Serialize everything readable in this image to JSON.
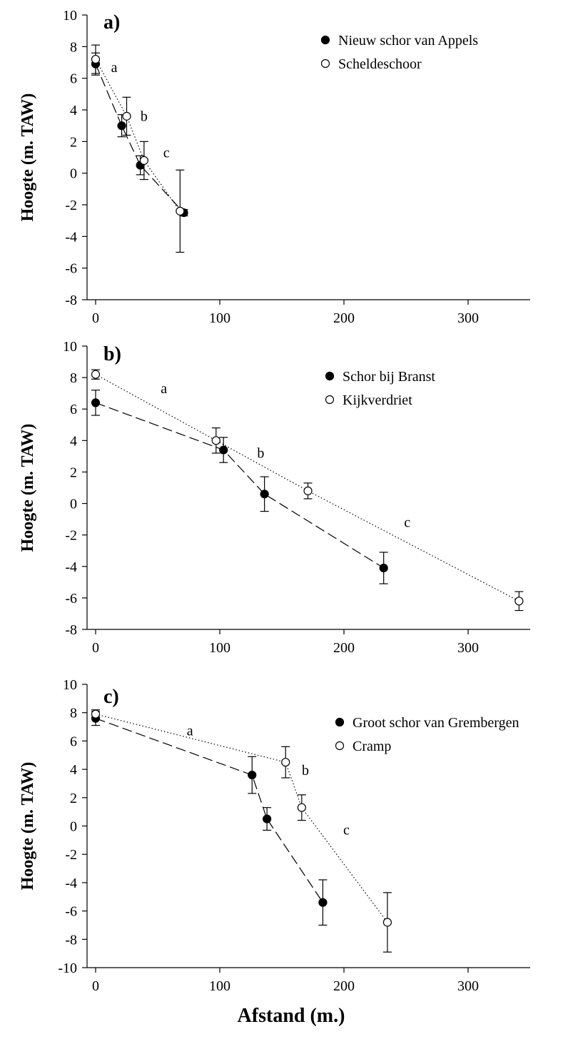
{
  "figure": {
    "xlabel": "Afstand (m.)"
  },
  "chart_data": [
    {
      "type": "scatter",
      "panel_label": "a)",
      "ylabel": "Hoogte (m. TAW)",
      "xlim": [
        0,
        350
      ],
      "ylim": [
        -8,
        10
      ],
      "xticks": [
        0,
        100,
        200,
        300
      ],
      "yticks": [
        -8,
        -6,
        -4,
        -2,
        0,
        2,
        4,
        6,
        8,
        10
      ],
      "legend_position": "top-right",
      "series": [
        {
          "name": "Nieuw schor van Appels",
          "marker": "filled",
          "line": "dashed",
          "x": [
            0,
            21,
            36,
            71
          ],
          "y": [
            6.9,
            3.0,
            0.5,
            -2.5
          ],
          "err": [
            0.7,
            0.7,
            0.6,
            0.2
          ]
        },
        {
          "name": "Scheldeschoor",
          "marker": "open",
          "line": "dotted",
          "x": [
            0,
            25,
            39,
            68
          ],
          "y": [
            7.2,
            3.6,
            0.8,
            -2.4
          ],
          "err": [
            0.9,
            1.2,
            1.2,
            2.6
          ]
        }
      ],
      "annotations": [
        {
          "text": "a",
          "x": 15,
          "y": 6.4
        },
        {
          "text": "b",
          "x": 39,
          "y": 3.3
        },
        {
          "text": "c",
          "x": 57,
          "y": 1.0
        }
      ]
    },
    {
      "type": "scatter",
      "panel_label": "b)",
      "ylabel": "Hoogte (m. TAW)",
      "xlim": [
        0,
        350
      ],
      "ylim": [
        -8,
        10
      ],
      "xticks": [
        0,
        100,
        200,
        300
      ],
      "yticks": [
        -8,
        -6,
        -4,
        -2,
        0,
        2,
        4,
        6,
        8,
        10
      ],
      "legend_position": "top-right",
      "series": [
        {
          "name": "Schor bij Branst",
          "marker": "filled",
          "line": "dashed",
          "x": [
            0,
            103,
            136,
            232
          ],
          "y": [
            6.4,
            3.4,
            0.6,
            -4.1
          ],
          "err": [
            0.8,
            0.8,
            1.1,
            1.0
          ]
        },
        {
          "name": "Kijkverdriet",
          "marker": "open",
          "line": "dotted",
          "x": [
            0,
            97,
            171,
            341
          ],
          "y": [
            8.2,
            4.0,
            0.8,
            -6.2
          ],
          "err": [
            0.3,
            0.8,
            0.5,
            0.6
          ]
        }
      ],
      "annotations": [
        {
          "text": "a",
          "x": 55,
          "y": 7.0
        },
        {
          "text": "b",
          "x": 133,
          "y": 2.9
        },
        {
          "text": "c",
          "x": 251,
          "y": -1.5
        }
      ]
    },
    {
      "type": "scatter",
      "panel_label": "c)",
      "ylabel": "Hoogte (m. TAW)",
      "xlim": [
        0,
        350
      ],
      "ylim": [
        -10,
        10
      ],
      "xticks": [
        0,
        100,
        200,
        300
      ],
      "yticks": [
        -10,
        -8,
        -6,
        -4,
        -2,
        0,
        2,
        4,
        6,
        8,
        10
      ],
      "legend_position": "top-right",
      "series": [
        {
          "name": "Groot schor van Grembergen",
          "marker": "filled",
          "line": "dashed",
          "x": [
            0,
            126,
            138,
            183
          ],
          "y": [
            7.6,
            3.6,
            0.5,
            -5.4
          ],
          "err": [
            0.5,
            1.3,
            0.8,
            1.6
          ]
        },
        {
          "name": "Cramp",
          "marker": "open",
          "line": "dotted",
          "x": [
            0,
            153,
            166,
            235
          ],
          "y": [
            7.9,
            4.5,
            1.3,
            -6.8
          ],
          "err": [
            0.3,
            1.1,
            0.9,
            2.1
          ]
        }
      ],
      "annotations": [
        {
          "text": "a",
          "x": 76,
          "y": 6.4
        },
        {
          "text": "b",
          "x": 169,
          "y": 3.6
        },
        {
          "text": "c",
          "x": 202,
          "y": -0.6
        }
      ]
    }
  ]
}
